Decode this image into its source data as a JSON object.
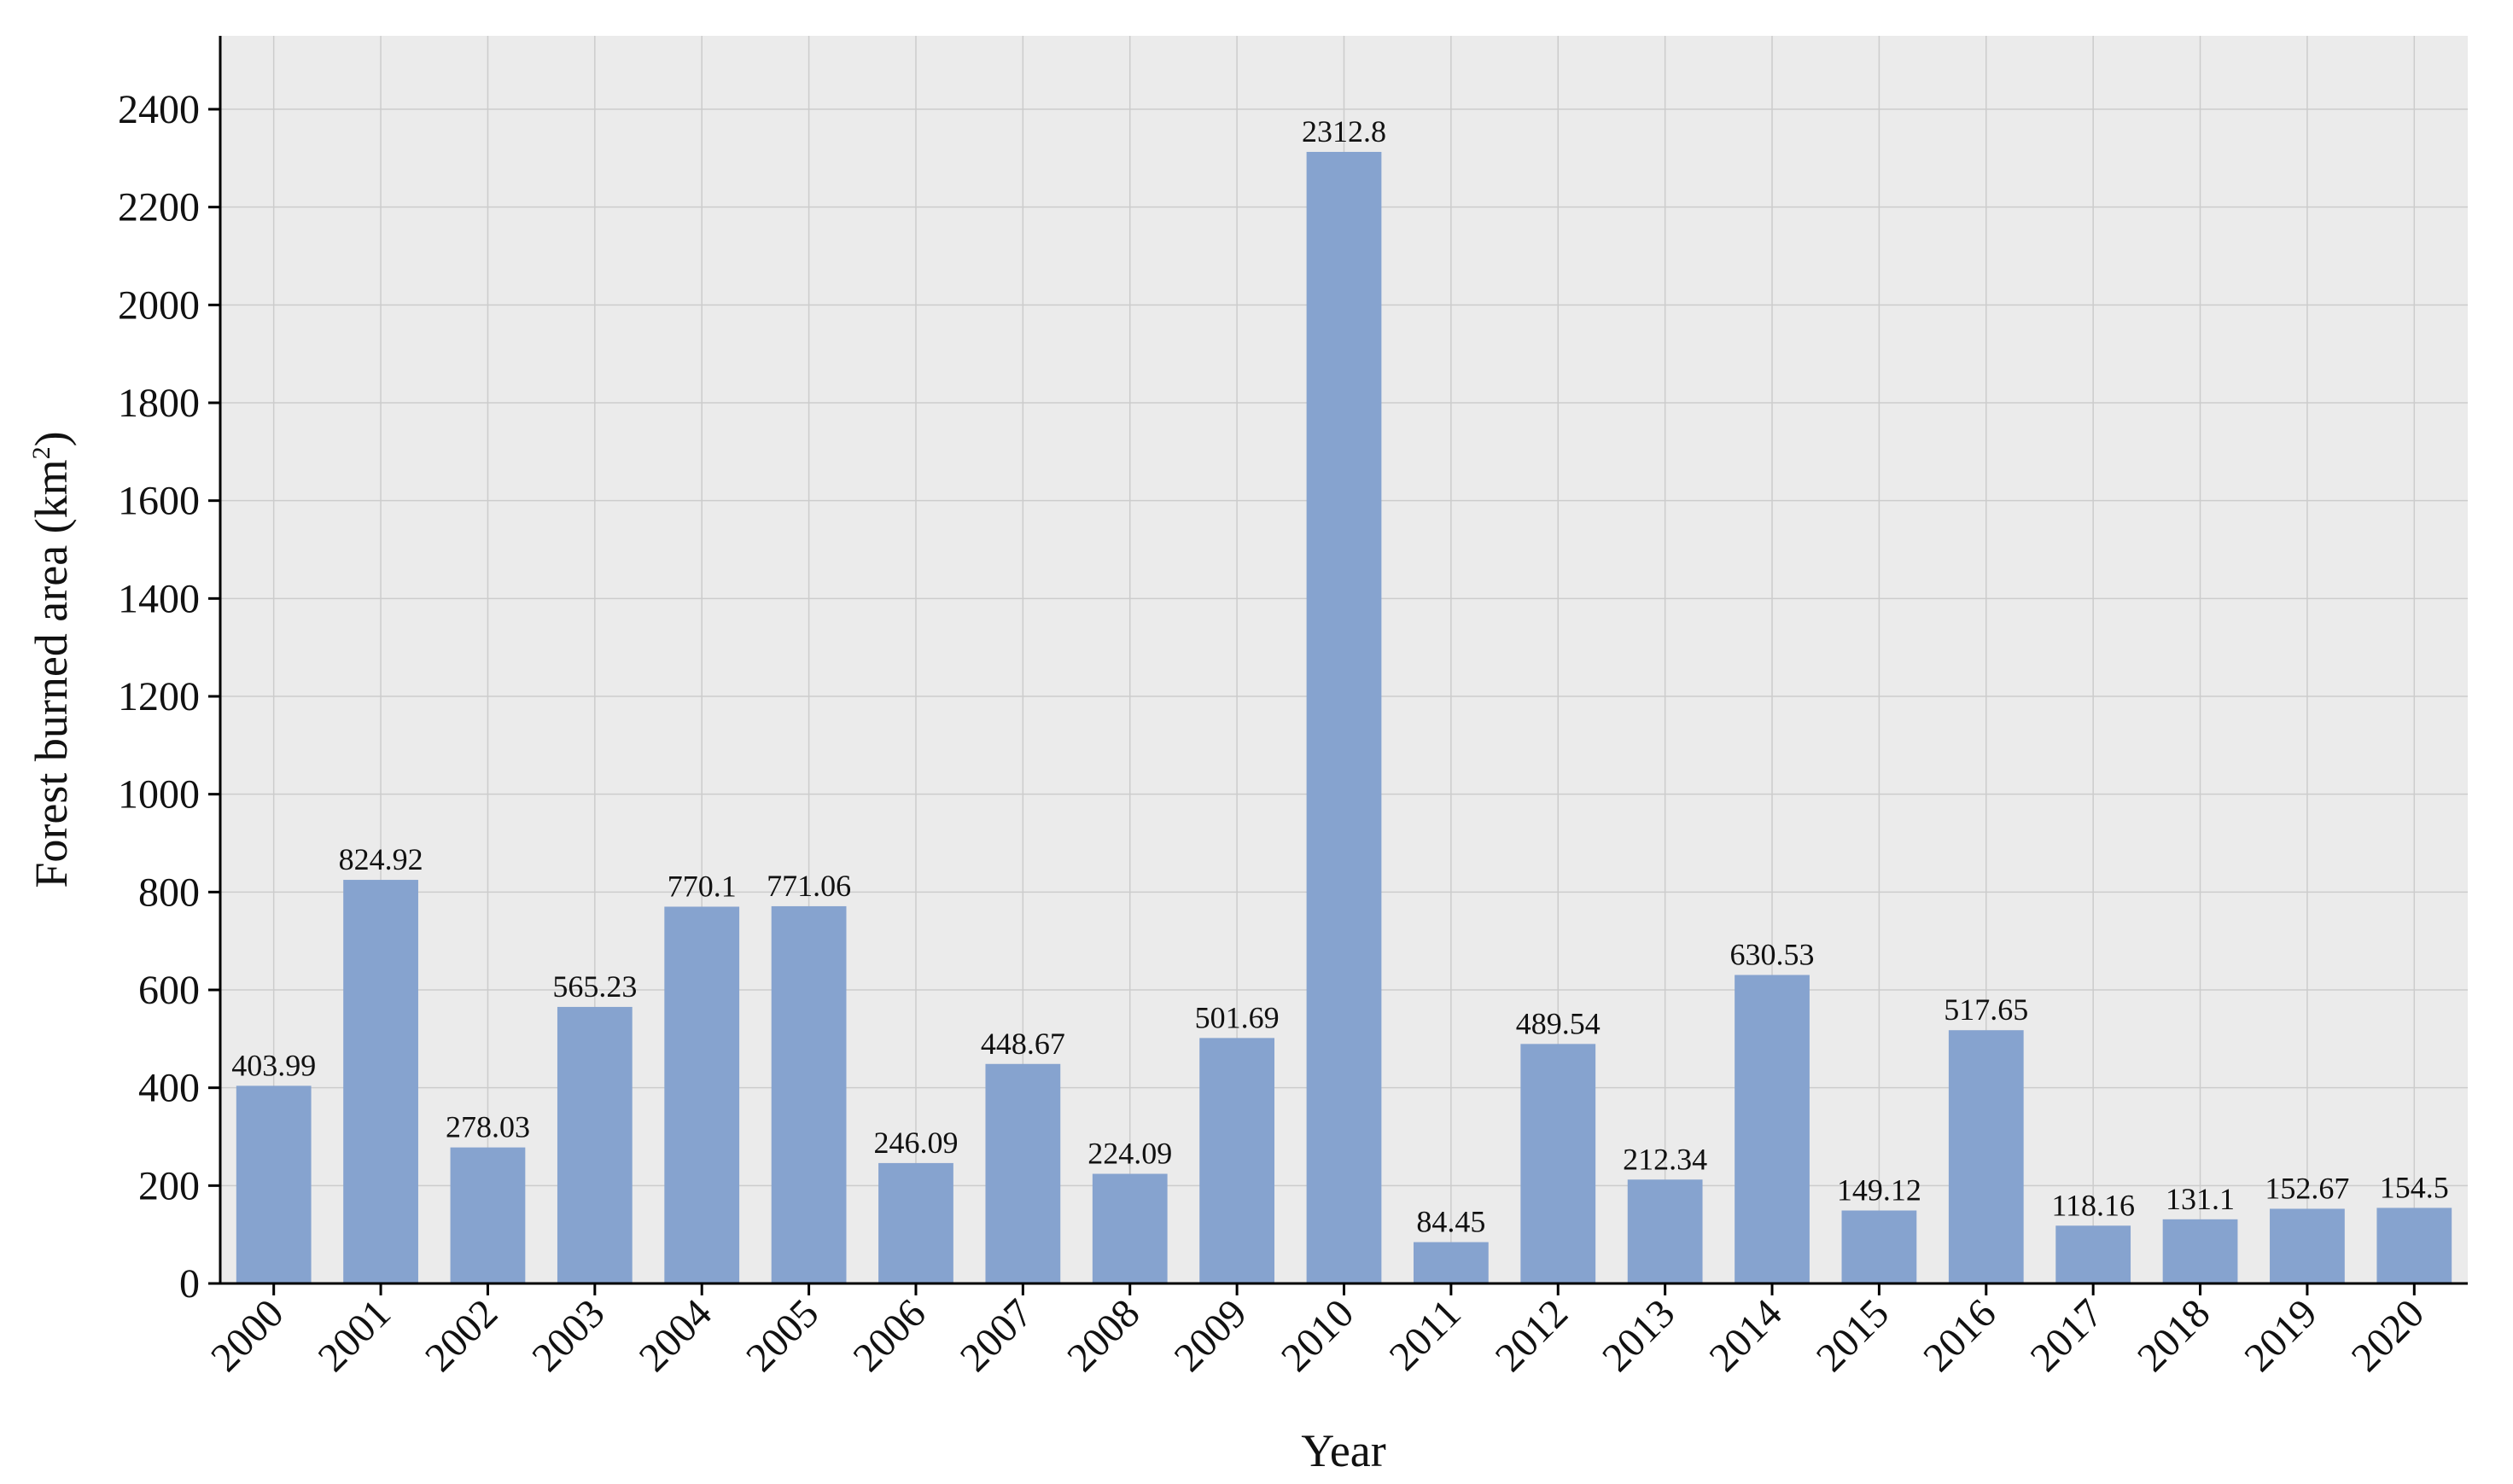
{
  "chart_data": {
    "type": "bar",
    "xlabel": "Year",
    "ylabel": "Forest burned area (km",
    "ylabel_superscript": "2",
    "ylabel_close": ")",
    "ylim": [
      0,
      2550
    ],
    "yticks": [
      0,
      200,
      400,
      600,
      800,
      1000,
      1200,
      1400,
      1600,
      1800,
      2000,
      2200,
      2400
    ],
    "grid": true,
    "bar_color": "#86a3cf",
    "plot_background": "#ebebeb",
    "grid_color": "#cccccc",
    "categories": [
      "2000",
      "2001",
      "2002",
      "2003",
      "2004",
      "2005",
      "2006",
      "2007",
      "2008",
      "2009",
      "2010",
      "2011",
      "2012",
      "2013",
      "2014",
      "2015",
      "2016",
      "2017",
      "2018",
      "2019",
      "2020"
    ],
    "values": [
      403.99,
      824.92,
      278.03,
      565.23,
      770.1,
      771.06,
      246.09,
      448.67,
      224.09,
      501.69,
      2312.8,
      84.45,
      489.54,
      212.34,
      630.53,
      149.12,
      517.65,
      118.16,
      131.1,
      152.67,
      154.5
    ],
    "value_labels": [
      "403.99",
      "824.92",
      "278.03",
      "565.23",
      "770.1",
      "771.06",
      "246.09",
      "448.67",
      "224.09",
      "501.69",
      "2312.8",
      "84.45",
      "489.54",
      "212.34",
      "630.53",
      "149.12",
      "517.65",
      "118.16",
      "131.1",
      "152.67",
      "154.5"
    ]
  }
}
